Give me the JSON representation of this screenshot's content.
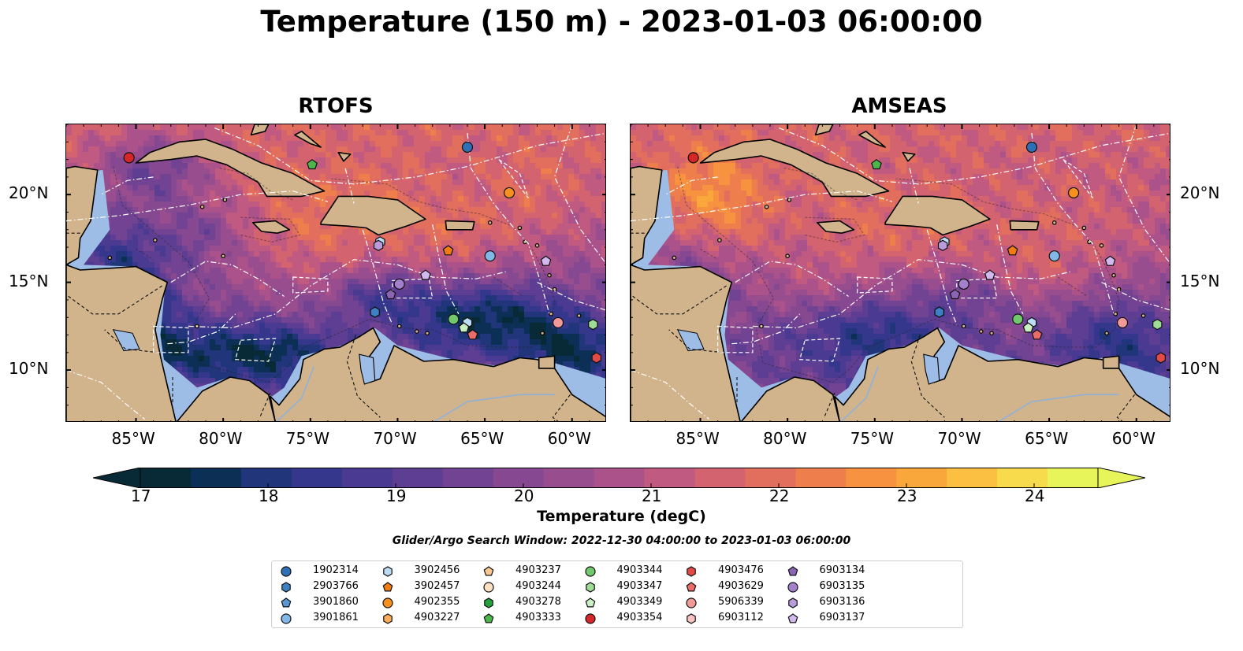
{
  "chart_data": {
    "type": "heatmap",
    "title": "Temperature (150 m) - 2023-01-03 06:00:00",
    "panels": [
      {
        "title": "RTOFS",
        "x_ticks": [
          "85°W",
          "80°W",
          "75°W",
          "70°W",
          "65°W",
          "60°W"
        ],
        "y_ticks": [
          "20°N",
          "15°N",
          "10°N"
        ],
        "y_tick_side": "left"
      },
      {
        "title": "AMSEAS",
        "x_ticks": [
          "85°W",
          "80°W",
          "75°W",
          "70°W",
          "65°W",
          "60°W"
        ],
        "y_ticks": [
          "20°N",
          "15°N",
          "10°N"
        ],
        "y_tick_side": "right"
      }
    ],
    "x_range_lon": [
      -89,
      -58
    ],
    "y_range_lat": [
      7,
      24
    ],
    "colorbar": {
      "label": "Temperature (degC)",
      "min": 17,
      "max": 24.5,
      "step": 0.5,
      "ticks": [
        "17",
        "18",
        "19",
        "20",
        "21",
        "22",
        "23",
        "24"
      ],
      "extend": "both",
      "colors": [
        "#082a37",
        "#0c2f55",
        "#20357a",
        "#35378c",
        "#4b3a92",
        "#5e3e93",
        "#724393",
        "#854891",
        "#984d8e",
        "#ac528a",
        "#c15a80",
        "#d3636f",
        "#e26f5e",
        "#ee7e4b",
        "#f69240",
        "#f9a73b",
        "#fbbf41",
        "#f8db4d",
        "#e8f55a"
      ]
    },
    "window_text": "Glider/Argo Search Window: 2022-12-30 04:00:00 to 2023-01-03 06:00:00",
    "legend": [
      {
        "label": "1902314",
        "marker": "circle",
        "color": "#2e6fb5"
      },
      {
        "label": "2903766",
        "marker": "hexagon",
        "color": "#3f7fc4"
      },
      {
        "label": "3901860",
        "marker": "pentagon",
        "color": "#5a98d4"
      },
      {
        "label": "3901861",
        "marker": "circle",
        "color": "#82b8e8"
      },
      {
        "label": "3902456",
        "marker": "hexagon",
        "color": "#bcdcf6"
      },
      {
        "label": "3902457",
        "marker": "pentagon",
        "color": "#f07c12"
      },
      {
        "label": "4902355",
        "marker": "circle",
        "color": "#f6901f"
      },
      {
        "label": "4903227",
        "marker": "hexagon",
        "color": "#fbac5c"
      },
      {
        "label": "4903237",
        "marker": "pentagon",
        "color": "#fcc790"
      },
      {
        "label": "4903244",
        "marker": "circle",
        "color": "#fde0c2"
      },
      {
        "label": "4903278",
        "marker": "hexagon",
        "color": "#24a13a"
      },
      {
        "label": "4903333",
        "marker": "pentagon",
        "color": "#4bb74b"
      },
      {
        "label": "4903344",
        "marker": "circle",
        "color": "#72c86c"
      },
      {
        "label": "4903347",
        "marker": "hexagon",
        "color": "#9fdc95"
      },
      {
        "label": "4903349",
        "marker": "pentagon",
        "color": "#c9efc2"
      },
      {
        "label": "4903354",
        "marker": "circle",
        "color": "#d62728"
      },
      {
        "label": "4903476",
        "marker": "hexagon",
        "color": "#e24a48"
      },
      {
        "label": "4903629",
        "marker": "pentagon",
        "color": "#ec6c6a"
      },
      {
        "label": "5906339",
        "marker": "circle",
        "color": "#f29a98"
      },
      {
        "label": "6903112",
        "marker": "hexagon",
        "color": "#f8c3c1"
      },
      {
        "label": "6903134",
        "marker": "pentagon",
        "color": "#8c64b4"
      },
      {
        "label": "6903135",
        "marker": "circle",
        "color": "#a47fcb"
      },
      {
        "label": "6903136",
        "marker": "hexagon",
        "color": "#ba9bdc"
      },
      {
        "label": "6903137",
        "marker": "pentagon",
        "color": "#d2b9ee"
      }
    ],
    "observations": [
      {
        "label": "4903354",
        "lon": -85.4,
        "lat": 22.1
      },
      {
        "label": "4903333",
        "lon": -74.9,
        "lat": 21.7
      },
      {
        "label": "1902314",
        "lon": -66.0,
        "lat": 22.7
      },
      {
        "label": "4902355",
        "lon": -63.6,
        "lat": 20.1
      },
      {
        "label": "3902456",
        "lon": -71.0,
        "lat": 17.3
      },
      {
        "label": "6903136",
        "lon": -71.1,
        "lat": 17.1
      },
      {
        "label": "3902457",
        "lon": -67.1,
        "lat": 16.8
      },
      {
        "label": "3901861",
        "lon": -64.7,
        "lat": 16.5
      },
      {
        "label": "6903137",
        "lon": -61.5,
        "lat": 16.2
      },
      {
        "label": "6903137",
        "lon": -68.4,
        "lat": 15.4
      },
      {
        "label": "6903135",
        "lon": -69.9,
        "lat": 14.9
      },
      {
        "label": "6903134",
        "lon": -70.4,
        "lat": 14.3
      },
      {
        "label": "2903766",
        "lon": -71.3,
        "lat": 13.3
      },
      {
        "label": "4903344",
        "lon": -66.8,
        "lat": 12.9
      },
      {
        "label": "3902456",
        "lon": -66.0,
        "lat": 12.7
      },
      {
        "label": "4903349",
        "lon": -66.2,
        "lat": 12.4
      },
      {
        "label": "4903629",
        "lon": -65.7,
        "lat": 12.0
      },
      {
        "label": "5906339",
        "lon": -60.8,
        "lat": 12.7
      },
      {
        "label": "4903347",
        "lon": -58.8,
        "lat": 12.6
      },
      {
        "label": "4903476",
        "lon": -58.6,
        "lat": 10.7
      }
    ]
  }
}
